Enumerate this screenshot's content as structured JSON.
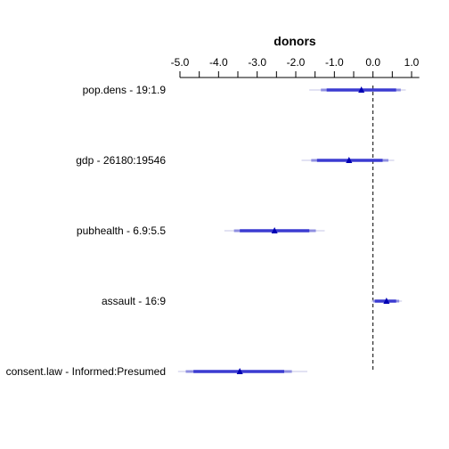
{
  "chart_data": {
    "type": "forest",
    "title": "donors",
    "xlim": [
      -5.0,
      1.2
    ],
    "ticks": [
      -5.0,
      -4.5,
      -4.0,
      -3.5,
      -3.0,
      -2.5,
      -2.0,
      -1.5,
      -1.0,
      -0.5,
      0.0,
      0.5,
      1.0
    ],
    "tick_labels": [
      "-5.0",
      "",
      "-4.0",
      "",
      "-3.0",
      "",
      "-2.0",
      "",
      "-1.0",
      "",
      "0.0",
      "",
      "1.0"
    ],
    "reference_line": 0.0,
    "colors": {
      "point": "#0000b3",
      "ci_inner": "#3b3bd1",
      "ci_mid": "#8f8fe0",
      "ci_outer": "#d9d9ef",
      "reference": "#000000"
    },
    "rows": [
      {
        "label": "pop.dens - 19:1.9",
        "estimate": -0.3,
        "ci50": [
          -1.2,
          0.6
        ],
        "ci80": [
          -1.35,
          0.72
        ],
        "ci95": [
          -1.65,
          0.85
        ]
      },
      {
        "label": "gdp - 26180:19546",
        "estimate": -0.62,
        "ci50": [
          -1.45,
          0.25
        ],
        "ci80": [
          -1.6,
          0.4
        ],
        "ci95": [
          -1.85,
          0.55
        ]
      },
      {
        "label": "pubhealth - 6.9:5.5",
        "estimate": -2.55,
        "ci50": [
          -3.45,
          -1.65
        ],
        "ci80": [
          -3.6,
          -1.48
        ],
        "ci95": [
          -3.85,
          -1.25
        ]
      },
      {
        "label": "assault - 16:9",
        "estimate": 0.35,
        "ci50": [
          0.05,
          0.6
        ],
        "ci80": [
          0.0,
          0.68
        ],
        "ci95": [
          -0.05,
          0.75
        ]
      },
      {
        "label": "consent.law - Informed:Presumed",
        "estimate": -3.45,
        "ci50": [
          -4.65,
          -2.3
        ],
        "ci80": [
          -4.85,
          -2.1
        ],
        "ci95": [
          -5.05,
          -1.7
        ]
      }
    ]
  }
}
